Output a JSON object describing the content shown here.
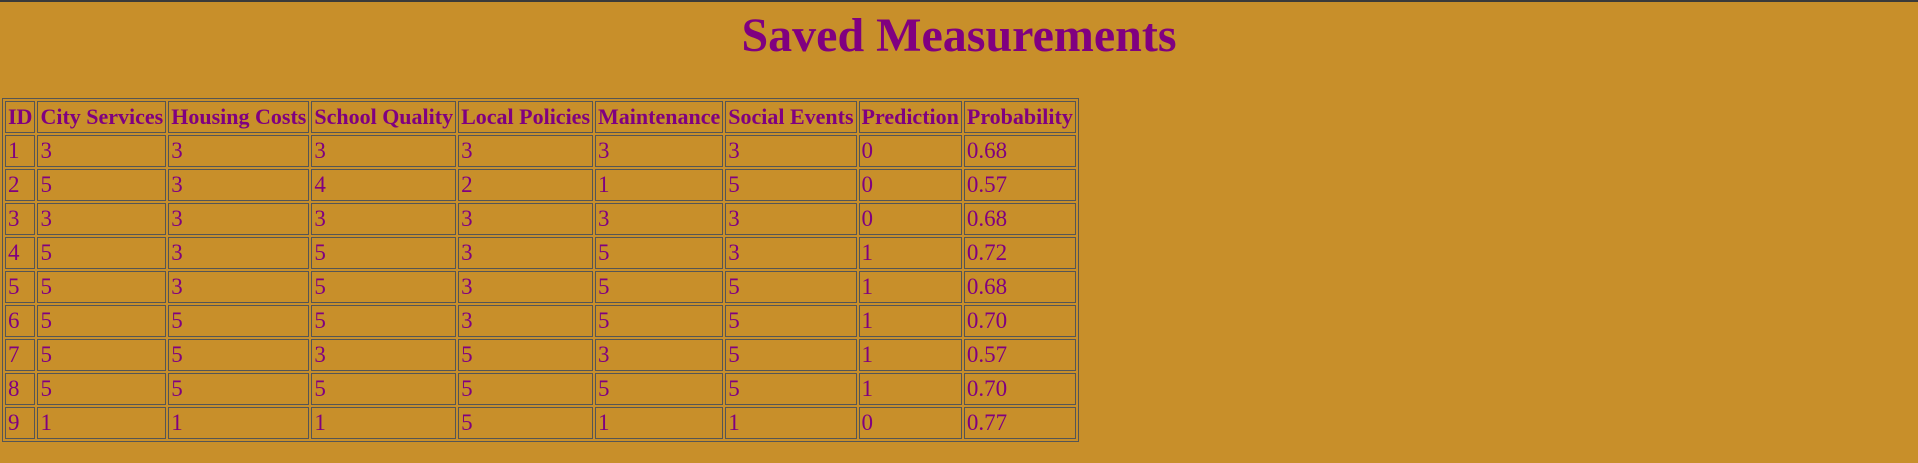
{
  "page": {
    "title": "Saved Measurements"
  },
  "table": {
    "columns": [
      "ID",
      "City Services",
      "Housing Costs",
      "School Quality",
      "Local Policies",
      "Maintenance",
      "Social Events",
      "Prediction",
      "Probability"
    ],
    "rows": [
      [
        "1",
        "3",
        "3",
        "3",
        "3",
        "3",
        "3",
        "0",
        "0.68"
      ],
      [
        "2",
        "5",
        "3",
        "4",
        "2",
        "1",
        "5",
        "0",
        "0.57"
      ],
      [
        "3",
        "3",
        "3",
        "3",
        "3",
        "3",
        "3",
        "0",
        "0.68"
      ],
      [
        "4",
        "5",
        "3",
        "5",
        "3",
        "5",
        "3",
        "1",
        "0.72"
      ],
      [
        "5",
        "5",
        "3",
        "5",
        "3",
        "5",
        "5",
        "1",
        "0.68"
      ],
      [
        "6",
        "5",
        "5",
        "5",
        "3",
        "5",
        "5",
        "1",
        "0.70"
      ],
      [
        "7",
        "5",
        "5",
        "3",
        "5",
        "3",
        "5",
        "1",
        "0.57"
      ],
      [
        "8",
        "5",
        "5",
        "5",
        "5",
        "5",
        "5",
        "1",
        "0.70"
      ],
      [
        "9",
        "1",
        "1",
        "1",
        "5",
        "1",
        "1",
        "0",
        "0.77"
      ]
    ]
  },
  "colors": {
    "background": "#c88f2a",
    "text": "#800080",
    "border": "#555555"
  }
}
